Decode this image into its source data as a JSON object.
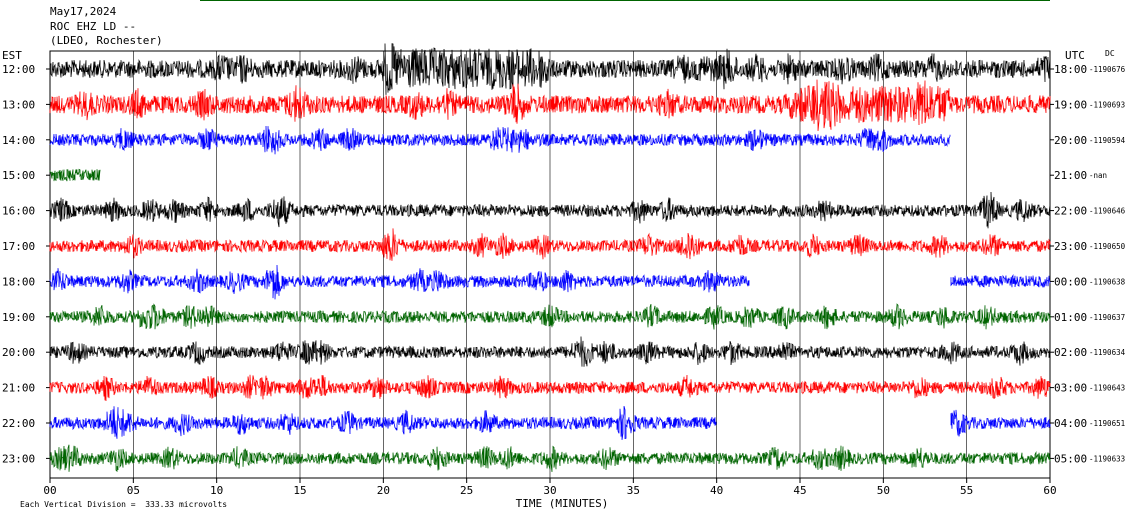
{
  "header": {
    "date": "May17,2024",
    "station": "ROC EHZ LD --",
    "location": "(LDEO, Rochester)"
  },
  "left_axis_title": "EST",
  "right_axis_title": "UTC",
  "dc_title": "DC",
  "footer": {
    "scale_note": "Each Vertical Division =  333.33 microvolts"
  },
  "colors": {
    "black": "#000000",
    "red": "#ff0000",
    "blue": "#0000ff",
    "green": "#006400"
  },
  "chart_data": {
    "type": "line",
    "title": "",
    "xlabel": "TIME (MINUTES)",
    "xlim": [
      0,
      60
    ],
    "x_ticks": [
      "00",
      "05",
      "10",
      "15",
      "20",
      "25",
      "30",
      "35",
      "40",
      "45",
      "50",
      "55",
      "60"
    ],
    "grid": true,
    "rows": [
      {
        "est": "12:00",
        "utc": "18:00",
        "dc": "-1190676",
        "color": "black",
        "amplitude": "high"
      },
      {
        "est": "13:00",
        "utc": "19:00",
        "dc": "-1190693",
        "color": "red",
        "amplitude": "high"
      },
      {
        "est": "14:00",
        "utc": "20:00",
        "dc": "-1190594",
        "color": "blue",
        "amplitude": "medium",
        "end_minute": 54
      },
      {
        "est": "15:00",
        "utc": "21:00",
        "dc": "-nan",
        "color": "green",
        "amplitude": "medium",
        "end_minute": 3
      },
      {
        "est": "16:00",
        "utc": "22:00",
        "dc": "-1190646",
        "color": "black",
        "amplitude": "medium"
      },
      {
        "est": "17:00",
        "utc": "23:00",
        "dc": "-1190650",
        "color": "red",
        "amplitude": "medium"
      },
      {
        "est": "18:00",
        "utc": "00:00",
        "dc": "-1190638",
        "color": "blue",
        "amplitude": "medium",
        "gap": [
          42,
          54
        ]
      },
      {
        "est": "19:00",
        "utc": "01:00",
        "dc": "-1190637",
        "color": "green",
        "amplitude": "medium"
      },
      {
        "est": "20:00",
        "utc": "02:00",
        "dc": "-1190634",
        "color": "black",
        "amplitude": "medium"
      },
      {
        "est": "21:00",
        "utc": "03:00",
        "dc": "-1190643",
        "color": "red",
        "amplitude": "medium"
      },
      {
        "est": "22:00",
        "utc": "04:00",
        "dc": "-1190651",
        "color": "blue",
        "amplitude": "medium",
        "gap": [
          40,
          54
        ]
      },
      {
        "est": "23:00",
        "utc": "05:00",
        "dc": "-1190633",
        "color": "green",
        "amplitude": "medium"
      }
    ]
  }
}
